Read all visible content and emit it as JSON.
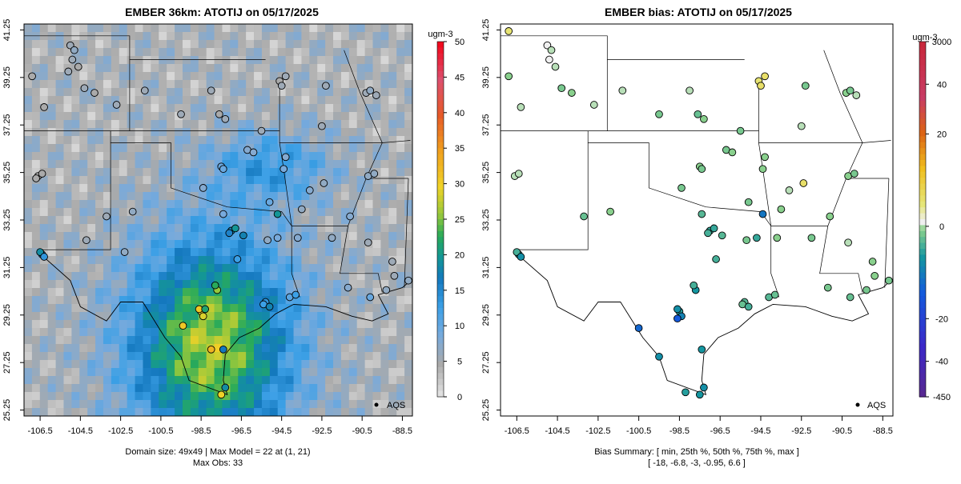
{
  "chart_data": [
    {
      "type": "heatmap",
      "title": "EMBER 36km: ATOTIJ on 05/17/2025",
      "colorbar": {
        "unit": "ugm-3",
        "ticks": [
          "0",
          "5",
          "10",
          "15",
          "20",
          "25",
          "30",
          "35",
          "40",
          "45",
          "50"
        ],
        "range": [
          0,
          50
        ]
      },
      "x_ticks": [
        "-106.5",
        "-104.5",
        "-102.5",
        "-100.5",
        "-98.5",
        "-96.5",
        "-94.5",
        "-92.5",
        "-90.5",
        "-88.5"
      ],
      "y_ticks": [
        "25.25",
        "27.25",
        "29.25",
        "31.25",
        "33.25",
        "35.25",
        "37.25",
        "39.25",
        "41.25"
      ],
      "xlim": [
        -107.3,
        -88.0
      ],
      "ylim": [
        25.0,
        41.5
      ],
      "legend": "AQS",
      "footer": [
        "Domain size: 49x49 | Max Model = 22 at (1, 21)",
        "Max Obs: 33"
      ],
      "obs_points": [
        {
          "lon": -105.0,
          "lat": 40.6,
          "v": 6
        },
        {
          "lon": -104.8,
          "lat": 40.4,
          "v": 7
        },
        {
          "lon": -104.9,
          "lat": 40.0,
          "v": 6
        },
        {
          "lon": -104.6,
          "lat": 39.7,
          "v": 5
        },
        {
          "lon": -105.1,
          "lat": 39.5,
          "v": 6
        },
        {
          "lon": -106.9,
          "lat": 39.3,
          "v": 5
        },
        {
          "lon": -104.3,
          "lat": 38.8,
          "v": 6
        },
        {
          "lon": -106.3,
          "lat": 38.0,
          "v": 5
        },
        {
          "lon": -102.7,
          "lat": 38.1,
          "v": 6
        },
        {
          "lon": -103.8,
          "lat": 38.6,
          "v": 5
        },
        {
          "lon": -101.3,
          "lat": 38.7,
          "v": 6
        },
        {
          "lon": -99.5,
          "lat": 37.7,
          "v": 6
        },
        {
          "lon": -97.6,
          "lat": 37.7,
          "v": 5
        },
        {
          "lon": -98.0,
          "lat": 38.7,
          "v": 6
        },
        {
          "lon": -97.3,
          "lat": 37.5,
          "v": 6
        },
        {
          "lon": -94.6,
          "lat": 39.1,
          "v": 5
        },
        {
          "lon": -94.5,
          "lat": 38.9,
          "v": 6
        },
        {
          "lon": -94.3,
          "lat": 39.3,
          "v": 6
        },
        {
          "lon": -92.3,
          "lat": 38.9,
          "v": 6
        },
        {
          "lon": -90.3,
          "lat": 38.6,
          "v": 6
        },
        {
          "lon": -90.1,
          "lat": 38.7,
          "v": 7
        },
        {
          "lon": -89.8,
          "lat": 38.5,
          "v": 6
        },
        {
          "lon": -92.5,
          "lat": 37.2,
          "v": 6
        },
        {
          "lon": -95.5,
          "lat": 37.0,
          "v": 6
        },
        {
          "lon": -96.2,
          "lat": 36.2,
          "v": 8
        },
        {
          "lon": -95.9,
          "lat": 36.1,
          "v": 8
        },
        {
          "lon": -97.5,
          "lat": 35.5,
          "v": 10
        },
        {
          "lon": -97.4,
          "lat": 35.4,
          "v": 10
        },
        {
          "lon": -98.4,
          "lat": 34.6,
          "v": 8
        },
        {
          "lon": -94.4,
          "lat": 35.4,
          "v": 9
        },
        {
          "lon": -92.4,
          "lat": 34.8,
          "v": 7
        },
        {
          "lon": -93.1,
          "lat": 34.5,
          "v": 8
        },
        {
          "lon": -90.2,
          "lat": 35.1,
          "v": 7
        },
        {
          "lon": -89.9,
          "lat": 35.2,
          "v": 7
        },
        {
          "lon": -106.6,
          "lat": 35.1,
          "v": 5
        },
        {
          "lon": -106.4,
          "lat": 35.2,
          "v": 5
        },
        {
          "lon": -106.7,
          "lat": 35.0,
          "v": 5
        },
        {
          "lon": -103.2,
          "lat": 33.4,
          "v": 6
        },
        {
          "lon": -101.9,
          "lat": 33.6,
          "v": 7
        },
        {
          "lon": -106.4,
          "lat": 31.8,
          "v": 17
        },
        {
          "lon": -106.5,
          "lat": 31.9,
          "v": 19
        },
        {
          "lon": -106.3,
          "lat": 31.7,
          "v": 14
        },
        {
          "lon": -104.2,
          "lat": 32.4,
          "v": 6
        },
        {
          "lon": -102.3,
          "lat": 31.9,
          "v": 7
        },
        {
          "lon": -97.0,
          "lat": 32.8,
          "v": 18
        },
        {
          "lon": -97.1,
          "lat": 32.7,
          "v": 16
        },
        {
          "lon": -96.8,
          "lat": 32.9,
          "v": 20
        },
        {
          "lon": -96.4,
          "lat": 32.6,
          "v": 18
        },
        {
          "lon": -97.4,
          "lat": 33.5,
          "v": 9
        },
        {
          "lon": -95.2,
          "lat": 32.4,
          "v": 7
        },
        {
          "lon": -94.7,
          "lat": 32.5,
          "v": 9
        },
        {
          "lon": -93.7,
          "lat": 32.5,
          "v": 8
        },
        {
          "lon": -96.7,
          "lat": 31.6,
          "v": 13
        },
        {
          "lon": -97.7,
          "lat": 30.3,
          "v": 26
        },
        {
          "lon": -97.8,
          "lat": 30.5,
          "v": 23
        },
        {
          "lon": -95.3,
          "lat": 29.8,
          "v": 14
        },
        {
          "lon": -95.4,
          "lat": 29.7,
          "v": 13
        },
        {
          "lon": -95.1,
          "lat": 29.6,
          "v": 18
        },
        {
          "lon": -94.1,
          "lat": 30.0,
          "v": 11
        },
        {
          "lon": -93.8,
          "lat": 30.1,
          "v": 13
        },
        {
          "lon": -98.5,
          "lat": 29.4,
          "v": 30
        },
        {
          "lon": -98.6,
          "lat": 29.5,
          "v": 31
        },
        {
          "lon": -98.4,
          "lat": 29.2,
          "v": 29
        },
        {
          "lon": -98.3,
          "lat": 29.5,
          "v": 22
        },
        {
          "lon": -99.4,
          "lat": 28.8,
          "v": 31
        },
        {
          "lon": -98.0,
          "lat": 27.8,
          "v": 33
        },
        {
          "lon": -97.4,
          "lat": 27.8,
          "v": 17
        },
        {
          "lon": -97.5,
          "lat": 25.9,
          "v": 30
        },
        {
          "lon": -97.3,
          "lat": 26.2,
          "v": 19
        },
        {
          "lon": -91.2,
          "lat": 30.4,
          "v": 8
        },
        {
          "lon": -90.1,
          "lat": 30.0,
          "v": 10
        },
        {
          "lon": -89.3,
          "lat": 30.3,
          "v": 7
        },
        {
          "lon": -88.9,
          "lat": 30.9,
          "v": 6
        },
        {
          "lon": -88.2,
          "lat": 30.7,
          "v": 7
        },
        {
          "lon": -89.0,
          "lat": 31.5,
          "v": 6
        },
        {
          "lon": -90.2,
          "lat": 32.3,
          "v": 6
        },
        {
          "lon": -92.0,
          "lat": 32.5,
          "v": 7
        },
        {
          "lon": -94.7,
          "lat": 33.5,
          "v": 20
        },
        {
          "lon": -95.1,
          "lat": 34.0,
          "v": 10
        },
        {
          "lon": -93.5,
          "lat": 33.7,
          "v": 7
        },
        {
          "lon": -94.3,
          "lat": 35.9,
          "v": 8
        },
        {
          "lon": -91.1,
          "lat": 33.4,
          "v": 8
        }
      ]
    },
    {
      "type": "heatmap",
      "title": "EMBER bias: ATOTIJ on 05/17/2025",
      "colorbar": {
        "unit": "ugm-3",
        "ticks": [
          "-450",
          "-40",
          "-20",
          "0",
          "20",
          "40",
          "3000"
        ],
        "range": [
          -450,
          3000
        ]
      },
      "x_ticks": [
        "-106.5",
        "-104.5",
        "-102.5",
        "-100.5",
        "-98.5",
        "-96.5",
        "-94.5",
        "-92.5",
        "-90.5",
        "-88.5"
      ],
      "y_ticks": [
        "25.25",
        "27.25",
        "29.25",
        "31.25",
        "33.25",
        "35.25",
        "37.25",
        "39.25",
        "41.25"
      ],
      "xlim": [
        -107.3,
        -88.0
      ],
      "ylim": [
        25.0,
        41.5
      ],
      "legend": "AQS",
      "footer": [
        "Bias Summary: [ min, 25th %, 50th %, 75th %, max ]",
        "[ -18,   -6.8,   -3,   -0.95,   6.6 ]"
      ],
      "obs_points": [
        {
          "lon": -105.0,
          "lat": 40.6,
          "v": 0
        },
        {
          "lon": -104.8,
          "lat": 40.4,
          "v": -1
        },
        {
          "lon": -104.9,
          "lat": 40.0,
          "v": 0
        },
        {
          "lon": -104.6,
          "lat": 39.7,
          "v": -1
        },
        {
          "lon": -106.9,
          "lat": 41.2,
          "v": 5
        },
        {
          "lon": -106.9,
          "lat": 39.3,
          "v": -2
        },
        {
          "lon": -104.3,
          "lat": 38.8,
          "v": -3
        },
        {
          "lon": -106.3,
          "lat": 38.0,
          "v": -1
        },
        {
          "lon": -102.7,
          "lat": 38.1,
          "v": -1
        },
        {
          "lon": -103.8,
          "lat": 38.6,
          "v": -2
        },
        {
          "lon": -101.3,
          "lat": 38.7,
          "v": -1
        },
        {
          "lon": -99.5,
          "lat": 37.7,
          "v": -3
        },
        {
          "lon": -97.6,
          "lat": 37.7,
          "v": -4
        },
        {
          "lon": -98.0,
          "lat": 38.7,
          "v": -1
        },
        {
          "lon": -97.3,
          "lat": 37.5,
          "v": -2
        },
        {
          "lon": -94.6,
          "lat": 39.1,
          "v": 5
        },
        {
          "lon": -94.5,
          "lat": 38.9,
          "v": 6
        },
        {
          "lon": -94.3,
          "lat": 39.3,
          "v": 6
        },
        {
          "lon": -92.3,
          "lat": 38.9,
          "v": -3
        },
        {
          "lon": -90.3,
          "lat": 38.6,
          "v": -2
        },
        {
          "lon": -90.1,
          "lat": 38.7,
          "v": -3
        },
        {
          "lon": -89.8,
          "lat": 38.5,
          "v": -1
        },
        {
          "lon": -92.5,
          "lat": 37.2,
          "v": -1
        },
        {
          "lon": -95.5,
          "lat": 37.0,
          "v": -3
        },
        {
          "lon": -96.2,
          "lat": 36.2,
          "v": -3
        },
        {
          "lon": -95.9,
          "lat": 36.1,
          "v": -2
        },
        {
          "lon": -97.5,
          "lat": 35.5,
          "v": -2
        },
        {
          "lon": -97.4,
          "lat": 35.4,
          "v": -3
        },
        {
          "lon": -98.4,
          "lat": 34.6,
          "v": -3
        },
        {
          "lon": -94.4,
          "lat": 35.4,
          "v": -2
        },
        {
          "lon": -92.4,
          "lat": 34.8,
          "v": 6
        },
        {
          "lon": -93.1,
          "lat": 34.5,
          "v": -1
        },
        {
          "lon": -90.2,
          "lat": 35.1,
          "v": -2
        },
        {
          "lon": -89.9,
          "lat": 35.2,
          "v": -3
        },
        {
          "lon": -106.6,
          "lat": 35.1,
          "v": -1
        },
        {
          "lon": -106.4,
          "lat": 35.2,
          "v": -1
        },
        {
          "lon": -103.2,
          "lat": 33.4,
          "v": -4
        },
        {
          "lon": -101.9,
          "lat": 33.6,
          "v": -2
        },
        {
          "lon": -106.4,
          "lat": 31.8,
          "v": -8
        },
        {
          "lon": -106.5,
          "lat": 31.9,
          "v": -6
        },
        {
          "lon": -106.3,
          "lat": 31.7,
          "v": -10
        },
        {
          "lon": -97.0,
          "lat": 32.8,
          "v": -7
        },
        {
          "lon": -97.1,
          "lat": 32.7,
          "v": -6
        },
        {
          "lon": -96.8,
          "lat": 32.9,
          "v": -7
        },
        {
          "lon": -96.4,
          "lat": 32.6,
          "v": -5
        },
        {
          "lon": -97.4,
          "lat": 33.5,
          "v": -5
        },
        {
          "lon": -95.2,
          "lat": 32.4,
          "v": -3
        },
        {
          "lon": -94.7,
          "lat": 32.5,
          "v": -7
        },
        {
          "lon": -93.7,
          "lat": 32.5,
          "v": -2
        },
        {
          "lon": -96.7,
          "lat": 31.6,
          "v": -6
        },
        {
          "lon": -97.7,
          "lat": 30.3,
          "v": -9
        },
        {
          "lon": -97.8,
          "lat": 30.5,
          "v": -6
        },
        {
          "lon": -95.3,
          "lat": 29.8,
          "v": -5
        },
        {
          "lon": -95.4,
          "lat": 29.7,
          "v": -4
        },
        {
          "lon": -95.1,
          "lat": 29.6,
          "v": -6
        },
        {
          "lon": -94.1,
          "lat": 30.0,
          "v": -5
        },
        {
          "lon": -93.8,
          "lat": 30.1,
          "v": -4
        },
        {
          "lon": -98.5,
          "lat": 29.4,
          "v": -8
        },
        {
          "lon": -98.6,
          "lat": 29.5,
          "v": -10
        },
        {
          "lon": -98.4,
          "lat": 29.2,
          "v": -12
        },
        {
          "lon": -98.6,
          "lat": 29.1,
          "v": -18
        },
        {
          "lon": -100.5,
          "lat": 28.7,
          "v": -16
        },
        {
          "lon": -99.5,
          "lat": 27.5,
          "v": -10
        },
        {
          "lon": -97.4,
          "lat": 27.8,
          "v": -9
        },
        {
          "lon": -97.5,
          "lat": 25.9,
          "v": -9
        },
        {
          "lon": -97.3,
          "lat": 26.2,
          "v": -10
        },
        {
          "lon": -98.2,
          "lat": 26.0,
          "v": -8
        },
        {
          "lon": -91.2,
          "lat": 30.4,
          "v": -3
        },
        {
          "lon": -90.1,
          "lat": 30.0,
          "v": -4
        },
        {
          "lon": -89.3,
          "lat": 30.3,
          "v": -3
        },
        {
          "lon": -88.9,
          "lat": 30.9,
          "v": -2
        },
        {
          "lon": -88.2,
          "lat": 30.7,
          "v": -3
        },
        {
          "lon": -89.0,
          "lat": 31.5,
          "v": -2
        },
        {
          "lon": -90.2,
          "lat": 32.3,
          "v": -1
        },
        {
          "lon": -92.0,
          "lat": 32.5,
          "v": -3
        },
        {
          "lon": -94.4,
          "lat": 33.5,
          "v": -14
        },
        {
          "lon": -95.1,
          "lat": 34.0,
          "v": -3
        },
        {
          "lon": -93.5,
          "lat": 33.7,
          "v": -2
        },
        {
          "lon": -94.3,
          "lat": 35.9,
          "v": -2
        },
        {
          "lon": -91.1,
          "lat": 33.4,
          "v": -2
        }
      ]
    }
  ]
}
